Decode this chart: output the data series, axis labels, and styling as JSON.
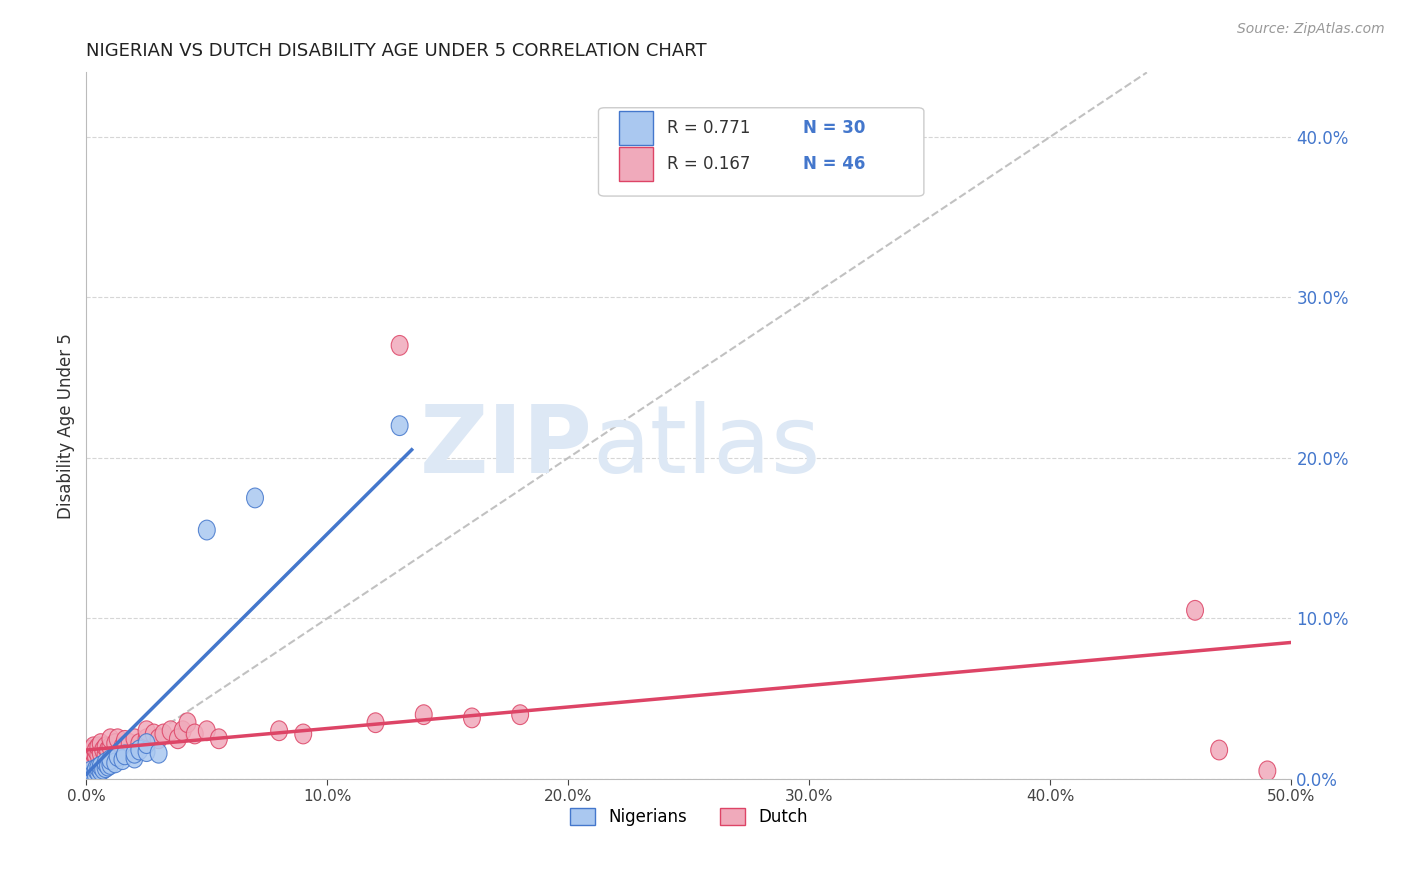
{
  "title": "NIGERIAN VS DUTCH DISABILITY AGE UNDER 5 CORRELATION CHART",
  "source": "Source: ZipAtlas.com",
  "ylabel": "Disability Age Under 5",
  "right_ytick_labels": [
    "0.0%",
    "10.0%",
    "20.0%",
    "30.0%",
    "40.0%"
  ],
  "right_ytick_vals": [
    0.0,
    0.1,
    0.2,
    0.3,
    0.4
  ],
  "xtick_labels": [
    "0.0%",
    "10.0%",
    "20.0%",
    "30.0%",
    "40.0%",
    "50.0%"
  ],
  "xtick_vals": [
    0.0,
    0.1,
    0.2,
    0.3,
    0.4,
    0.5
  ],
  "xlim": [
    0.0,
    0.5
  ],
  "ylim": [
    0.0,
    0.44
  ],
  "r_nigerian": 0.771,
  "n_nigerian": 30,
  "r_dutch": 0.167,
  "n_dutch": 46,
  "legend_labels": [
    "Nigerians",
    "Dutch"
  ],
  "color_nigerian": "#aac8f0",
  "color_dutch": "#f0aabb",
  "line_color_nigerian": "#4477cc",
  "line_color_dutch": "#dd4466",
  "diagonal_color": "#bbbbbb",
  "title_color": "#222222",
  "axis_label_color": "#4477cc",
  "watermark1": "ZIP",
  "watermark2": "atlas",
  "nigerian_line": [
    0.0,
    0.003,
    0.135,
    0.205
  ],
  "dutch_line": [
    0.0,
    0.018,
    0.5,
    0.085
  ],
  "nigerian_points": [
    [
      0.001,
      0.001
    ],
    [
      0.002,
      0.003
    ],
    [
      0.002,
      0.005
    ],
    [
      0.003,
      0.001
    ],
    [
      0.003,
      0.003
    ],
    [
      0.004,
      0.002
    ],
    [
      0.004,
      0.006
    ],
    [
      0.005,
      0.004
    ],
    [
      0.005,
      0.007
    ],
    [
      0.006,
      0.005
    ],
    [
      0.006,
      0.008
    ],
    [
      0.007,
      0.006
    ],
    [
      0.008,
      0.007
    ],
    [
      0.008,
      0.01
    ],
    [
      0.009,
      0.008
    ],
    [
      0.01,
      0.009
    ],
    [
      0.01,
      0.012
    ],
    [
      0.012,
      0.01
    ],
    [
      0.013,
      0.014
    ],
    [
      0.015,
      0.012
    ],
    [
      0.016,
      0.015
    ],
    [
      0.02,
      0.013
    ],
    [
      0.02,
      0.016
    ],
    [
      0.022,
      0.018
    ],
    [
      0.025,
      0.017
    ],
    [
      0.025,
      0.022
    ],
    [
      0.03,
      0.016
    ],
    [
      0.05,
      0.155
    ],
    [
      0.07,
      0.175
    ],
    [
      0.13,
      0.22
    ]
  ],
  "dutch_points": [
    [
      0.001,
      0.015
    ],
    [
      0.002,
      0.012
    ],
    [
      0.002,
      0.018
    ],
    [
      0.003,
      0.016
    ],
    [
      0.003,
      0.02
    ],
    [
      0.004,
      0.014
    ],
    [
      0.004,
      0.018
    ],
    [
      0.005,
      0.015
    ],
    [
      0.005,
      0.02
    ],
    [
      0.006,
      0.016
    ],
    [
      0.006,
      0.022
    ],
    [
      0.007,
      0.018
    ],
    [
      0.008,
      0.015
    ],
    [
      0.008,
      0.02
    ],
    [
      0.009,
      0.018
    ],
    [
      0.01,
      0.02
    ],
    [
      0.01,
      0.025
    ],
    [
      0.012,
      0.022
    ],
    [
      0.013,
      0.025
    ],
    [
      0.015,
      0.02
    ],
    [
      0.016,
      0.024
    ],
    [
      0.018,
      0.022
    ],
    [
      0.02,
      0.025
    ],
    [
      0.022,
      0.022
    ],
    [
      0.025,
      0.025
    ],
    [
      0.025,
      0.03
    ],
    [
      0.028,
      0.028
    ],
    [
      0.03,
      0.025
    ],
    [
      0.032,
      0.028
    ],
    [
      0.035,
      0.03
    ],
    [
      0.038,
      0.025
    ],
    [
      0.04,
      0.03
    ],
    [
      0.042,
      0.035
    ],
    [
      0.045,
      0.028
    ],
    [
      0.05,
      0.03
    ],
    [
      0.055,
      0.025
    ],
    [
      0.08,
      0.03
    ],
    [
      0.09,
      0.028
    ],
    [
      0.12,
      0.035
    ],
    [
      0.14,
      0.04
    ],
    [
      0.16,
      0.038
    ],
    [
      0.18,
      0.04
    ],
    [
      0.13,
      0.27
    ],
    [
      0.46,
      0.105
    ],
    [
      0.47,
      0.018
    ],
    [
      0.49,
      0.005
    ]
  ],
  "background_color": "#ffffff"
}
